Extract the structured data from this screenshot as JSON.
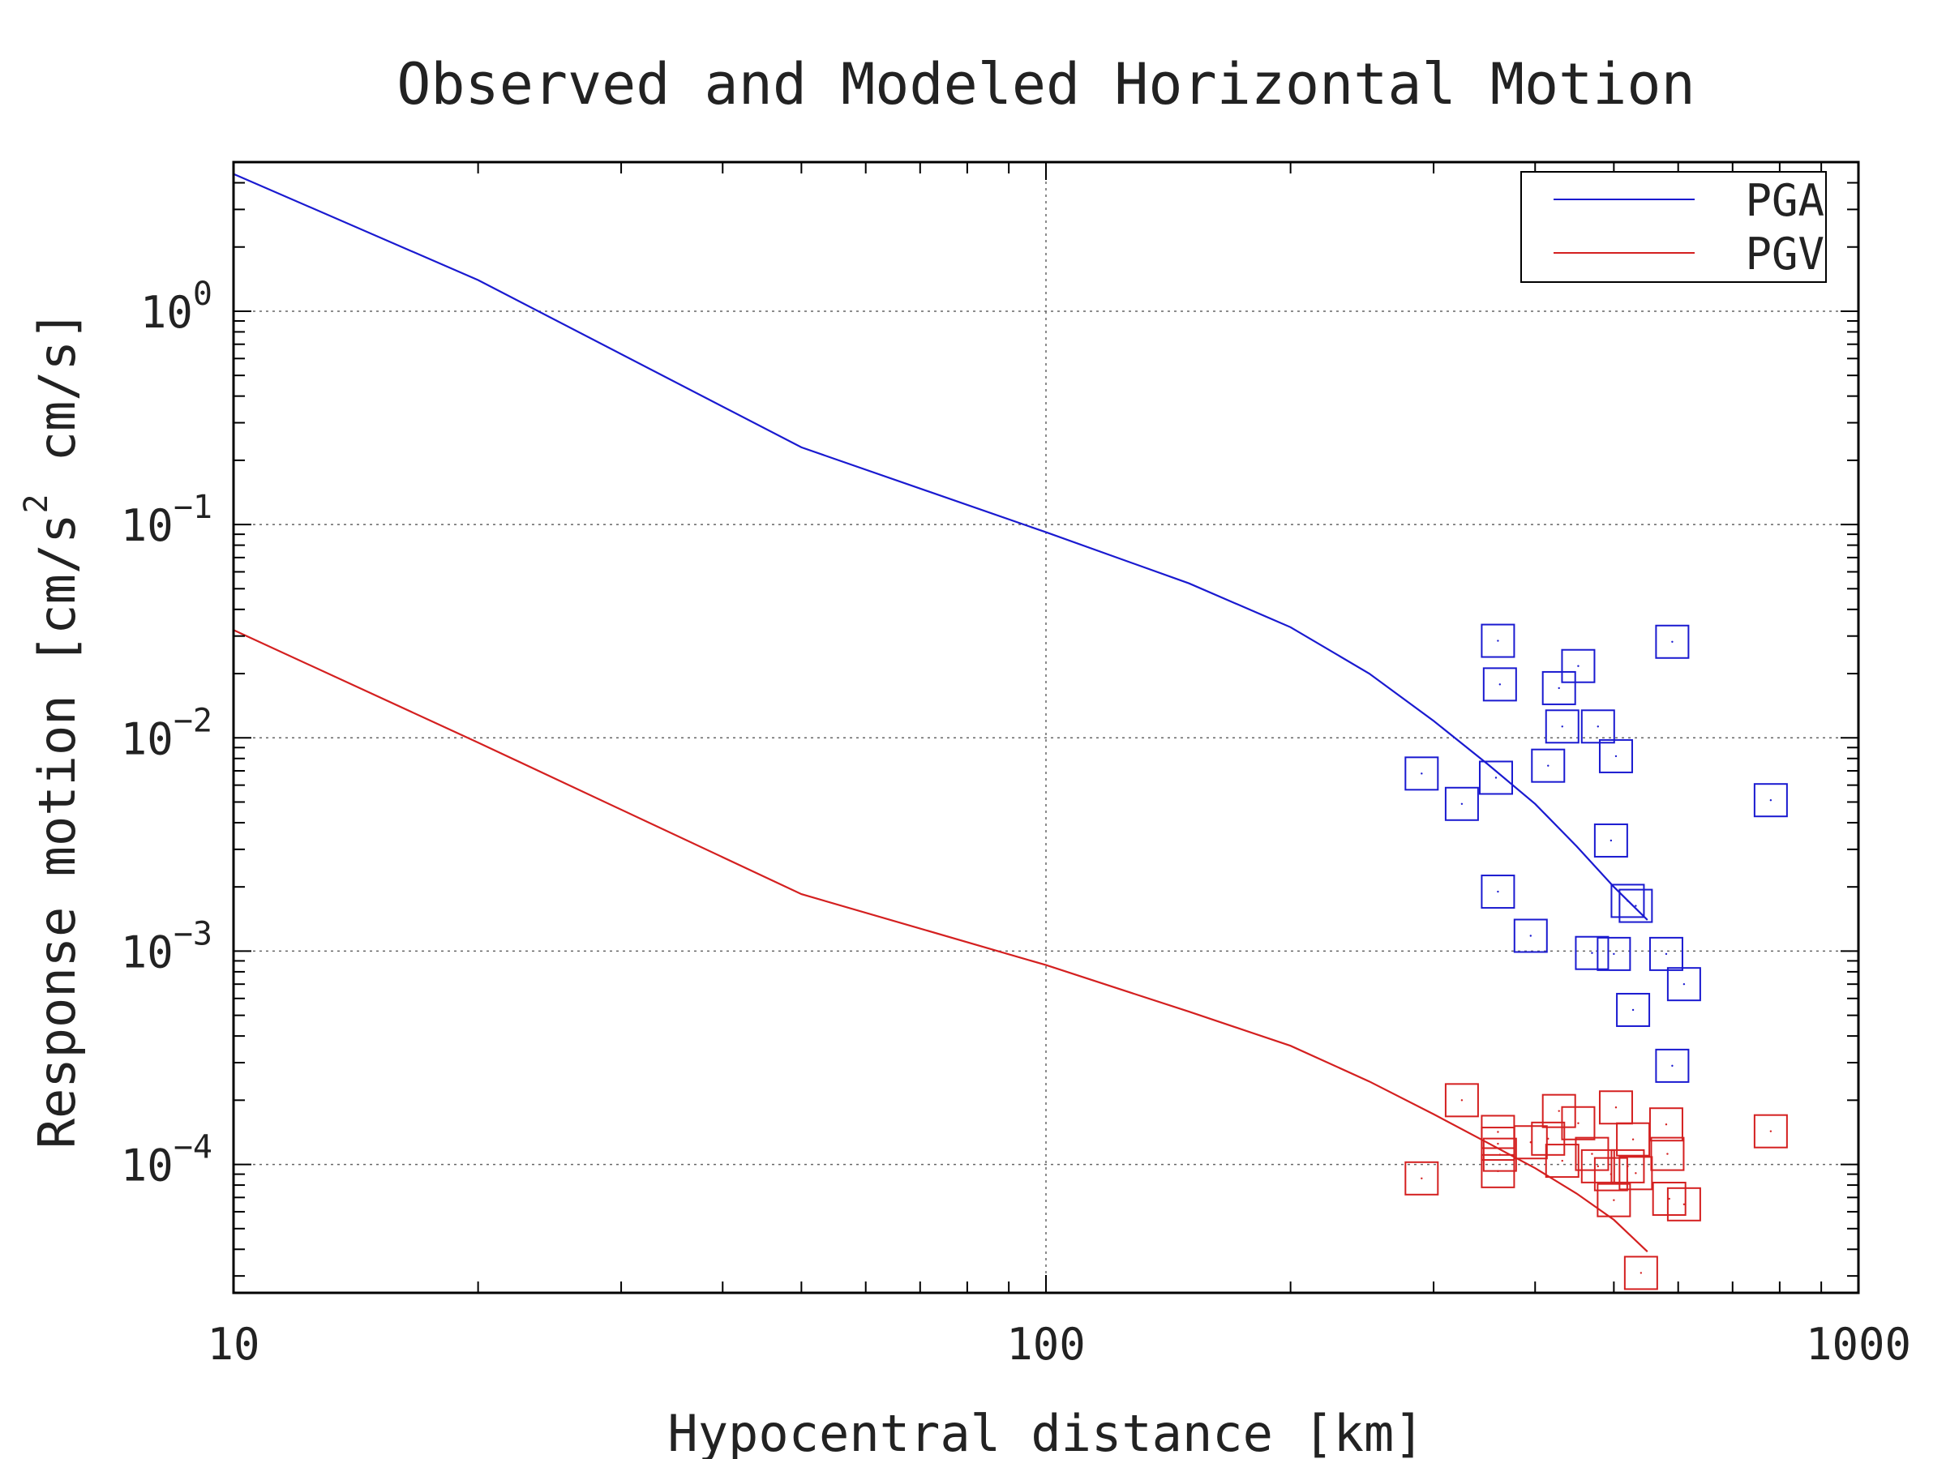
{
  "chart_data": {
    "type": "scatter",
    "title": "Observed and Modeled Horizontal Motion",
    "xlabel": "Hypocentral distance [km]",
    "ylabel": "Response motion [cm/s² cm/s]",
    "ylabel_parts": {
      "a": "Response motion [cm/s",
      "sup": "2",
      "b": "cm/s]"
    },
    "x_scale": "log",
    "y_scale": "log",
    "xlim": [
      10,
      1000
    ],
    "ylim": [
      2.5e-05,
      5.0
    ],
    "x_ticks": [
      {
        "value": 10,
        "label": "10"
      },
      {
        "value": 100,
        "label": "100"
      },
      {
        "value": 1000,
        "label": "1000"
      }
    ],
    "y_ticks": [
      {
        "value": 1,
        "base": "10",
        "exp": "0"
      },
      {
        "value": 0.1,
        "base": "10",
        "exp": "−1"
      },
      {
        "value": 0.01,
        "base": "10",
        "exp": "−2"
      },
      {
        "value": 0.001,
        "base": "10",
        "exp": "−3"
      },
      {
        "value": 0.0001,
        "base": "10",
        "exp": "−4"
      }
    ],
    "grid": true,
    "legend_position": "top-right",
    "series": [
      {
        "name": "PGA",
        "color": "#1a1ad0",
        "line": [
          [
            10,
            4.4
          ],
          [
            20,
            1.4
          ],
          [
            50,
            0.23
          ],
          [
            100,
            0.092
          ],
          [
            150,
            0.053
          ],
          [
            200,
            0.033
          ],
          [
            250,
            0.02
          ],
          [
            300,
            0.012
          ],
          [
            350,
            0.0075
          ],
          [
            400,
            0.0049
          ],
          [
            450,
            0.0031
          ],
          [
            500,
            0.002
          ],
          [
            550,
            0.0014
          ]
        ],
        "points": [
          [
            290,
            0.0068
          ],
          [
            325,
            0.0049
          ],
          [
            360,
            0.0285
          ],
          [
            362,
            0.0178
          ],
          [
            358,
            0.0065
          ],
          [
            360,
            0.0019
          ],
          [
            395,
            0.00118
          ],
          [
            415,
            0.0074
          ],
          [
            428,
            0.0171
          ],
          [
            432,
            0.0113
          ],
          [
            452,
            0.0217
          ],
          [
            470,
            0.00098
          ],
          [
            478,
            0.0113
          ],
          [
            496,
            0.0033
          ],
          [
            500,
            0.00097
          ],
          [
            503,
            0.0082
          ],
          [
            520,
            0.00172
          ],
          [
            528,
            0.00053
          ],
          [
            532,
            0.00163
          ],
          [
            580,
            0.00097
          ],
          [
            590,
            0.0282
          ],
          [
            590,
            0.00029
          ],
          [
            610,
            0.0007
          ],
          [
            780,
            0.0051
          ]
        ]
      },
      {
        "name": "PGV",
        "color": "#d42020",
        "line": [
          [
            10,
            0.032
          ],
          [
            20,
            0.0095
          ],
          [
            50,
            0.00185
          ],
          [
            100,
            0.00086
          ],
          [
            150,
            0.00052
          ],
          [
            200,
            0.00036
          ],
          [
            250,
            0.000245
          ],
          [
            300,
            0.000172
          ],
          [
            350,
            0.000126
          ],
          [
            400,
            9.6e-05
          ],
          [
            450,
            7.3e-05
          ],
          [
            500,
            5.5e-05
          ],
          [
            550,
            3.9e-05
          ]
        ],
        "points": [
          [
            290,
            8.6e-05
          ],
          [
            325,
            0.0002
          ],
          [
            360,
            0.000142
          ],
          [
            360,
            0.000125
          ],
          [
            362,
            0.000111
          ],
          [
            360,
            9.3e-05
          ],
          [
            395,
            0.000127
          ],
          [
            415,
            0.000132
          ],
          [
            428,
            0.000178
          ],
          [
            432,
            0.000104
          ],
          [
            452,
            0.000156
          ],
          [
            470,
            0.000112
          ],
          [
            478,
            9.8e-05
          ],
          [
            496,
            9e-05
          ],
          [
            500,
            6.8e-05
          ],
          [
            503,
            0.000185
          ],
          [
            520,
            9.8e-05
          ],
          [
            528,
            0.000131
          ],
          [
            532,
            9.1e-05
          ],
          [
            540,
            3.1e-05
          ],
          [
            580,
            0.000154
          ],
          [
            582,
            0.000112
          ],
          [
            585,
            6.9e-05
          ],
          [
            610,
            6.5e-05
          ],
          [
            780,
            0.000143
          ]
        ]
      }
    ]
  }
}
